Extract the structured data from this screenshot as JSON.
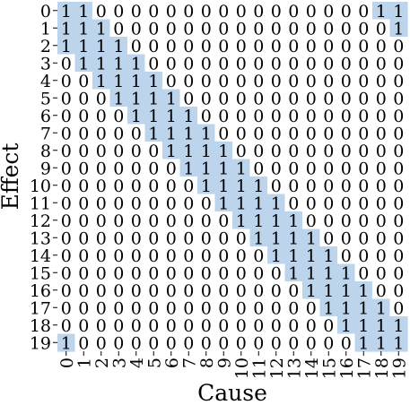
{
  "chart_data": {
    "type": "heatmap",
    "title": "",
    "xlabel": "Cause",
    "ylabel": "Effect",
    "x_categories": [
      "0",
      "1",
      "2",
      "3",
      "4",
      "5",
      "6",
      "7",
      "8",
      "9",
      "10",
      "11",
      "12",
      "13",
      "14",
      "15",
      "16",
      "17",
      "18",
      "19"
    ],
    "y_categories": [
      "0",
      "1",
      "2",
      "3",
      "4",
      "5",
      "6",
      "7",
      "8",
      "9",
      "10",
      "11",
      "12",
      "13",
      "14",
      "15",
      "16",
      "17",
      "18",
      "19"
    ],
    "values": [
      [
        1,
        1,
        0,
        0,
        0,
        0,
        0,
        0,
        0,
        0,
        0,
        0,
        0,
        0,
        0,
        0,
        0,
        0,
        1,
        1
      ],
      [
        1,
        1,
        1,
        0,
        0,
        0,
        0,
        0,
        0,
        0,
        0,
        0,
        0,
        0,
        0,
        0,
        0,
        0,
        0,
        1
      ],
      [
        1,
        1,
        1,
        1,
        0,
        0,
        0,
        0,
        0,
        0,
        0,
        0,
        0,
        0,
        0,
        0,
        0,
        0,
        0,
        0
      ],
      [
        0,
        1,
        1,
        1,
        1,
        0,
        0,
        0,
        0,
        0,
        0,
        0,
        0,
        0,
        0,
        0,
        0,
        0,
        0,
        0
      ],
      [
        0,
        0,
        1,
        1,
        1,
        1,
        0,
        0,
        0,
        0,
        0,
        0,
        0,
        0,
        0,
        0,
        0,
        0,
        0,
        0
      ],
      [
        0,
        0,
        0,
        1,
        1,
        1,
        1,
        0,
        0,
        0,
        0,
        0,
        0,
        0,
        0,
        0,
        0,
        0,
        0,
        0
      ],
      [
        0,
        0,
        0,
        0,
        1,
        1,
        1,
        1,
        0,
        0,
        0,
        0,
        0,
        0,
        0,
        0,
        0,
        0,
        0,
        0
      ],
      [
        0,
        0,
        0,
        0,
        0,
        1,
        1,
        1,
        1,
        0,
        0,
        0,
        0,
        0,
        0,
        0,
        0,
        0,
        0,
        0
      ],
      [
        0,
        0,
        0,
        0,
        0,
        0,
        1,
        1,
        1,
        1,
        0,
        0,
        0,
        0,
        0,
        0,
        0,
        0,
        0,
        0
      ],
      [
        0,
        0,
        0,
        0,
        0,
        0,
        0,
        1,
        1,
        1,
        1,
        0,
        0,
        0,
        0,
        0,
        0,
        0,
        0,
        0
      ],
      [
        0,
        0,
        0,
        0,
        0,
        0,
        0,
        0,
        1,
        1,
        1,
        1,
        0,
        0,
        0,
        0,
        0,
        0,
        0,
        0
      ],
      [
        0,
        0,
        0,
        0,
        0,
        0,
        0,
        0,
        0,
        1,
        1,
        1,
        1,
        0,
        0,
        0,
        0,
        0,
        0,
        0
      ],
      [
        0,
        0,
        0,
        0,
        0,
        0,
        0,
        0,
        0,
        0,
        1,
        1,
        1,
        1,
        0,
        0,
        0,
        0,
        0,
        0
      ],
      [
        0,
        0,
        0,
        0,
        0,
        0,
        0,
        0,
        0,
        0,
        0,
        1,
        1,
        1,
        1,
        0,
        0,
        0,
        0,
        0
      ],
      [
        0,
        0,
        0,
        0,
        0,
        0,
        0,
        0,
        0,
        0,
        0,
        0,
        1,
        1,
        1,
        1,
        0,
        0,
        0,
        0
      ],
      [
        0,
        0,
        0,
        0,
        0,
        0,
        0,
        0,
        0,
        0,
        0,
        0,
        0,
        1,
        1,
        1,
        1,
        0,
        0,
        0
      ],
      [
        0,
        0,
        0,
        0,
        0,
        0,
        0,
        0,
        0,
        0,
        0,
        0,
        0,
        0,
        1,
        1,
        1,
        1,
        0,
        0
      ],
      [
        0,
        0,
        0,
        0,
        0,
        0,
        0,
        0,
        0,
        0,
        0,
        0,
        0,
        0,
        0,
        1,
        1,
        1,
        1,
        0
      ],
      [
        0,
        0,
        0,
        0,
        0,
        0,
        0,
        0,
        0,
        0,
        0,
        0,
        0,
        0,
        0,
        0,
        1,
        1,
        1,
        1
      ],
      [
        1,
        0,
        0,
        0,
        0,
        0,
        0,
        0,
        0,
        0,
        0,
        0,
        0,
        0,
        0,
        0,
        0,
        1,
        1,
        1
      ]
    ],
    "colors": {
      "one": "#bcd4ec",
      "zero": "#ffffff",
      "text": "#000000"
    },
    "grid": false,
    "legend": "none"
  }
}
